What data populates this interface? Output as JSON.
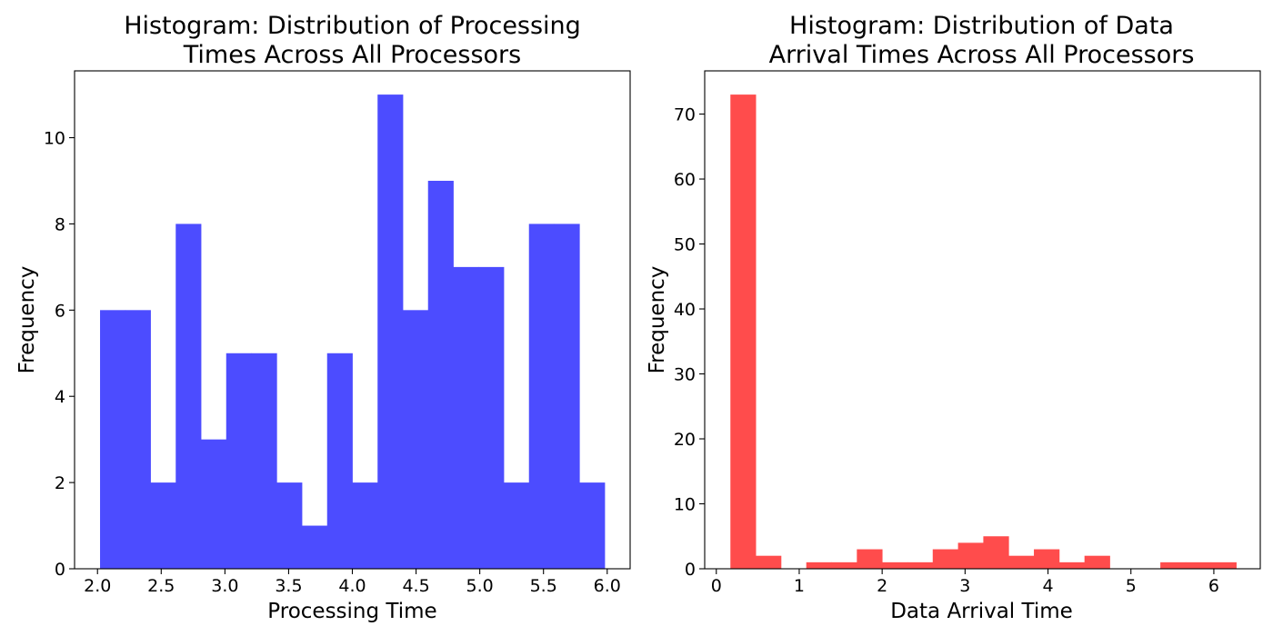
{
  "chart_data": [
    {
      "type": "bar",
      "title_lines": [
        "Histogram: Distribution of Processing",
        "Times Across All Processors"
      ],
      "xlabel": "Processing Time",
      "ylabel": "Frequency",
      "color": "#4c4cff",
      "xlim": [
        1.82,
        6.18
      ],
      "ylim": [
        0,
        11.55
      ],
      "xticks": [
        2.0,
        2.5,
        3.0,
        3.5,
        4.0,
        4.5,
        5.0,
        5.5,
        6.0
      ],
      "xtick_labels": [
        "2.0",
        "2.5",
        "3.0",
        "3.5",
        "4.0",
        "4.5",
        "5.0",
        "5.5",
        "6.0"
      ],
      "yticks": [
        0,
        2,
        4,
        6,
        8,
        10
      ],
      "ytick_labels": [
        "0",
        "2",
        "4",
        "6",
        "8",
        "10"
      ],
      "bin_start": 2.02,
      "bin_end": 5.98,
      "values": [
        6,
        6,
        2,
        8,
        3,
        5,
        5,
        2,
        1,
        5,
        2,
        11,
        6,
        9,
        7,
        7,
        2,
        8,
        8,
        2
      ],
      "grid": false,
      "legend": "none"
    },
    {
      "type": "bar",
      "title_lines": [
        "Histogram: Distribution of Data",
        "Arrival Times Across All Processors"
      ],
      "xlabel": "Data Arrival Time",
      "ylabel": "Frequency",
      "color": "#ff4c4c",
      "xlim": [
        -0.14,
        6.56
      ],
      "ylim": [
        0,
        76.65
      ],
      "xticks": [
        0,
        1,
        2,
        3,
        4,
        5,
        6
      ],
      "xtick_labels": [
        "0",
        "1",
        "2",
        "3",
        "4",
        "5",
        "6"
      ],
      "yticks": [
        0,
        10,
        20,
        30,
        40,
        50,
        60,
        70
      ],
      "ytick_labels": [
        "0",
        "10",
        "20",
        "30",
        "40",
        "50",
        "60",
        "70"
      ],
      "bin_start": 0.17,
      "bin_end": 6.27,
      "values": [
        73,
        2,
        0,
        1,
        1,
        3,
        1,
        1,
        3,
        4,
        5,
        2,
        3,
        1,
        2,
        0,
        0,
        1,
        1,
        1
      ],
      "grid": false,
      "legend": "none"
    }
  ]
}
